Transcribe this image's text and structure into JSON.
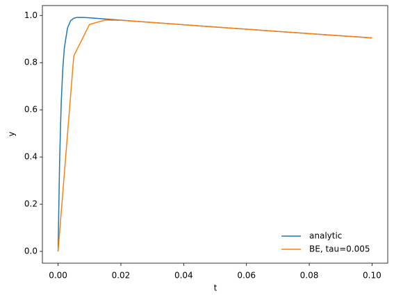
{
  "chart_data": {
    "type": "line",
    "xlabel": "t",
    "ylabel": "y",
    "xlim": [
      -0.005,
      0.105
    ],
    "ylim": [
      -0.05,
      1.042
    ],
    "xticks": [
      {
        "value": 0,
        "label": "0.00"
      },
      {
        "value": 0.02,
        "label": "0.02"
      },
      {
        "value": 0.04,
        "label": "0.04"
      },
      {
        "value": 0.06,
        "label": "0.06"
      },
      {
        "value": 0.08,
        "label": "0.08"
      },
      {
        "value": 0.1,
        "label": "0.10"
      }
    ],
    "yticks": [
      {
        "value": 0,
        "label": "0.0"
      },
      {
        "value": 0.2,
        "label": "0.2"
      },
      {
        "value": 0.4,
        "label": "0.4"
      },
      {
        "value": 0.6,
        "label": "0.6"
      },
      {
        "value": 0.8,
        "label": "0.8"
      },
      {
        "value": 1,
        "label": "1.0"
      }
    ],
    "legend": "lower right",
    "series": [
      {
        "name": "analytic",
        "color": "#1f77b4",
        "x": [
          0,
          0.0005,
          0.001,
          0.0015,
          0.002,
          0.003,
          0.004,
          0.005,
          0.006,
          0.008,
          0.01,
          0.015,
          0.02,
          0.03,
          0.04,
          0.05,
          0.06,
          0.07,
          0.08,
          0.09,
          0.1
        ],
        "values": [
          0,
          0.393,
          0.6311,
          0.7754,
          0.8627,
          0.9472,
          0.9777,
          0.9883,
          0.9915,
          0.9917,
          0.99,
          0.9851,
          0.9802,
          0.9704,
          0.9608,
          0.9512,
          0.9418,
          0.9324,
          0.9231,
          0.9139,
          0.9048
        ]
      },
      {
        "name": "BE, tau=0.005",
        "color": "#ff7f0e",
        "x": [
          0,
          0.005,
          0.01,
          0.015,
          0.02,
          0.025,
          0.03,
          0.035,
          0.04,
          0.045,
          0.05,
          0.055,
          0.06,
          0.065,
          0.07,
          0.075,
          0.08,
          0.085,
          0.09,
          0.095,
          0.1
        ],
        "values": [
          0,
          0.828,
          0.962,
          0.9805,
          0.9794,
          0.9752,
          0.9704,
          0.9656,
          0.9608,
          0.956,
          0.9512,
          0.9465,
          0.9418,
          0.9371,
          0.9324,
          0.9278,
          0.9231,
          0.9185,
          0.9139,
          0.9094,
          0.9049
        ]
      }
    ]
  }
}
